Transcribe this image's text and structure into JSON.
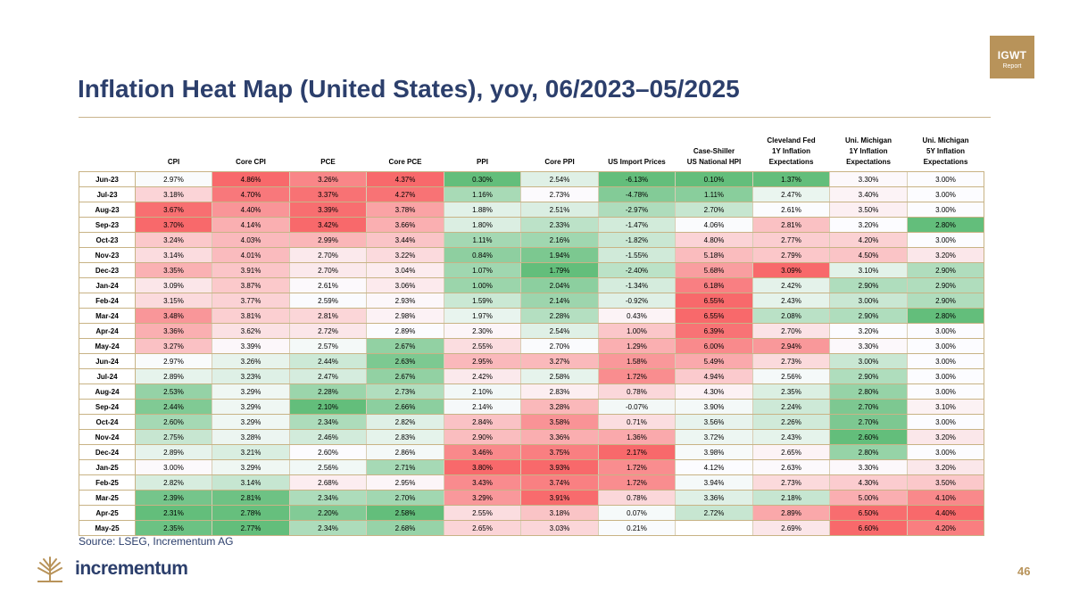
{
  "badge": {
    "line1": "IGWT",
    "line2": "Report"
  },
  "title": "Inflation Heat Map (United States), yoy, 06/2023–05/2025",
  "columns": [
    [
      "CPI"
    ],
    [
      "Core CPI"
    ],
    [
      "PCE"
    ],
    [
      "Core PCE"
    ],
    [
      "PPI"
    ],
    [
      "Core PPI"
    ],
    [
      "US Import Prices"
    ],
    [
      "Case-Shiller",
      "US National HPI"
    ],
    [
      "Cleveland Fed",
      "1Y Inflation",
      "Expectations"
    ],
    [
      "Uni. Michigan",
      "1Y Inflation",
      "Expectations"
    ],
    [
      "Uni. Michigan",
      "5Y Inflation",
      "Expectations"
    ]
  ],
  "rows": [
    {
      "label": "Jun-23",
      "values": [
        "2.97%",
        "4.86%",
        "3.26%",
        "4.37%",
        "0.30%",
        "2.54%",
        "-6.13%",
        "0.10%",
        "1.37%",
        "3.30%",
        "3.00%"
      ]
    },
    {
      "label": "Jul-23",
      "values": [
        "3.18%",
        "4.70%",
        "3.37%",
        "4.27%",
        "1.16%",
        "2.73%",
        "-4.78%",
        "1.11%",
        "2.47%",
        "3.40%",
        "3.00%"
      ]
    },
    {
      "label": "Aug-23",
      "values": [
        "3.67%",
        "4.40%",
        "3.39%",
        "3.78%",
        "1.88%",
        "2.51%",
        "-2.97%",
        "2.70%",
        "2.61%",
        "3.50%",
        "3.00%"
      ]
    },
    {
      "label": "Sep-23",
      "values": [
        "3.70%",
        "4.14%",
        "3.42%",
        "3.66%",
        "1.80%",
        "2.33%",
        "-1.47%",
        "4.06%",
        "2.81%",
        "3.20%",
        "2.80%"
      ]
    },
    {
      "label": "Oct-23",
      "values": [
        "3.24%",
        "4.03%",
        "2.99%",
        "3.44%",
        "1.11%",
        "2.16%",
        "-1.82%",
        "4.80%",
        "2.77%",
        "4.20%",
        "3.00%"
      ]
    },
    {
      "label": "Nov-23",
      "values": [
        "3.14%",
        "4.01%",
        "2.70%",
        "3.22%",
        "0.84%",
        "1.94%",
        "-1.55%",
        "5.18%",
        "2.79%",
        "4.50%",
        "3.20%"
      ]
    },
    {
      "label": "Dec-23",
      "values": [
        "3.35%",
        "3.91%",
        "2.70%",
        "3.04%",
        "1.07%",
        "1.79%",
        "-2.40%",
        "5.68%",
        "3.09%",
        "3.10%",
        "2.90%"
      ]
    },
    {
      "label": "Jan-24",
      "values": [
        "3.09%",
        "3.87%",
        "2.61%",
        "3.06%",
        "1.00%",
        "2.04%",
        "-1.34%",
        "6.18%",
        "2.42%",
        "2.90%",
        "2.90%"
      ]
    },
    {
      "label": "Feb-24",
      "values": [
        "3.15%",
        "3.77%",
        "2.59%",
        "2.93%",
        "1.59%",
        "2.14%",
        "-0.92%",
        "6.55%",
        "2.43%",
        "3.00%",
        "2.90%"
      ]
    },
    {
      "label": "Mar-24",
      "values": [
        "3.48%",
        "3.81%",
        "2.81%",
        "2.98%",
        "1.97%",
        "2.28%",
        "0.43%",
        "6.55%",
        "2.08%",
        "2.90%",
        "2.80%"
      ]
    },
    {
      "label": "Apr-24",
      "values": [
        "3.36%",
        "3.62%",
        "2.72%",
        "2.89%",
        "2.30%",
        "2.54%",
        "1.00%",
        "6.39%",
        "2.70%",
        "3.20%",
        "3.00%"
      ]
    },
    {
      "label": "May-24",
      "values": [
        "3.27%",
        "3.39%",
        "2.57%",
        "2.67%",
        "2.55%",
        "2.70%",
        "1.29%",
        "6.00%",
        "2.94%",
        "3.30%",
        "3.00%"
      ]
    },
    {
      "label": "Jun-24",
      "values": [
        "2.97%",
        "3.26%",
        "2.44%",
        "2.63%",
        "2.95%",
        "3.27%",
        "1.58%",
        "5.49%",
        "2.73%",
        "3.00%",
        "3.00%"
      ]
    },
    {
      "label": "Jul-24",
      "values": [
        "2.89%",
        "3.23%",
        "2.47%",
        "2.67%",
        "2.42%",
        "2.58%",
        "1.72%",
        "4.94%",
        "2.56%",
        "2.90%",
        "3.00%"
      ]
    },
    {
      "label": "Aug-24",
      "values": [
        "2.53%",
        "3.29%",
        "2.28%",
        "2.73%",
        "2.10%",
        "2.83%",
        "0.78%",
        "4.30%",
        "2.35%",
        "2.80%",
        "3.00%"
      ]
    },
    {
      "label": "Sep-24",
      "values": [
        "2.44%",
        "3.29%",
        "2.10%",
        "2.66%",
        "2.14%",
        "3.28%",
        "-0.07%",
        "3.90%",
        "2.24%",
        "2.70%",
        "3.10%"
      ]
    },
    {
      "label": "Oct-24",
      "values": [
        "2.60%",
        "3.29%",
        "2.34%",
        "2.82%",
        "2.84%",
        "3.58%",
        "0.71%",
        "3.56%",
        "2.26%",
        "2.70%",
        "3.00%"
      ]
    },
    {
      "label": "Nov-24",
      "values": [
        "2.75%",
        "3.28%",
        "2.46%",
        "2.83%",
        "2.90%",
        "3.36%",
        "1.36%",
        "3.72%",
        "2.43%",
        "2.60%",
        "3.20%"
      ]
    },
    {
      "label": "Dec-24",
      "values": [
        "2.89%",
        "3.21%",
        "2.60%",
        "2.86%",
        "3.46%",
        "3.75%",
        "2.17%",
        "3.98%",
        "2.65%",
        "2.80%",
        "3.00%"
      ]
    },
    {
      "label": "Jan-25",
      "values": [
        "3.00%",
        "3.29%",
        "2.56%",
        "2.71%",
        "3.80%",
        "3.93%",
        "1.72%",
        "4.12%",
        "2.63%",
        "3.30%",
        "3.20%"
      ]
    },
    {
      "label": "Feb-25",
      "values": [
        "2.82%",
        "3.14%",
        "2.68%",
        "2.95%",
        "3.43%",
        "3.74%",
        "1.72%",
        "3.94%",
        "2.73%",
        "4.30%",
        "3.50%"
      ]
    },
    {
      "label": "Mar-25",
      "values": [
        "2.39%",
        "2.81%",
        "2.34%",
        "2.70%",
        "3.29%",
        "3.91%",
        "0.78%",
        "3.36%",
        "2.18%",
        "5.00%",
        "4.10%"
      ]
    },
    {
      "label": "Apr-25",
      "values": [
        "2.31%",
        "2.78%",
        "2.20%",
        "2.58%",
        "2.55%",
        "3.18%",
        "0.07%",
        "2.72%",
        "2.89%",
        "6.50%",
        "4.40%"
      ]
    },
    {
      "label": "May-25",
      "values": [
        "2.35%",
        "2.77%",
        "2.34%",
        "2.68%",
        "2.65%",
        "3.03%",
        "0.21%",
        "",
        "2.69%",
        "6.60%",
        "4.20%"
      ]
    }
  ],
  "colors": {
    "low": "#63be7b",
    "mid": "#fcfcff",
    "high": "#f8696b",
    "accent": "#b8935a",
    "navy": "#2c3f6c"
  },
  "source": "Source: LSEG, Incrementum AG",
  "brand": "incrementum",
  "page_number": "46"
}
